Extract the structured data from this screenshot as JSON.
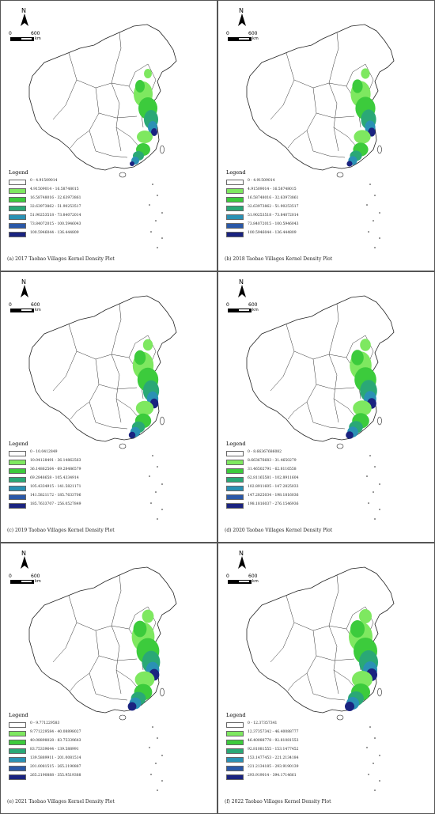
{
  "north_label": "N",
  "scale": {
    "start": "0",
    "end": "600",
    "unit": "km"
  },
  "legend_title": "Legend",
  "legend_colors": [
    "#ffffff",
    "#7ee860",
    "#3ccb3c",
    "#2aa876",
    "#2a91b4",
    "#2a58a8",
    "#1a2380"
  ],
  "panels": [
    {
      "caption": "(a) 2017 Taobao Villages Kernel Density Plot",
      "legend": [
        "0 - 4.91509014",
        "4.91509014 - 16.58748015",
        "16.58748016 - 32.63973861",
        "32.63973862 - 51.90253517",
        "51.90253518 - 73.84072014",
        "73.84072015 - 100.5946043",
        "100.5946044 - 136.444809"
      ]
    },
    {
      "caption": "(b) 2018 Taobao Villages Kernel Density Plot",
      "legend": [
        "0 - 4.91509014",
        "4.91509014 - 16.58748015",
        "16.58748016 - 32.63973861",
        "32.63973862 - 51.90253517",
        "51.90253518 - 73.84072014",
        "73.84072015 - 100.5946043",
        "100.5946044 - 136.444809"
      ]
    },
    {
      "caption": "(c) 2019 Taobao Villages Kernel Density Plot",
      "legend": [
        "0 - 10.0412849",
        "10.04128491 - 36.14862563",
        "36.14862564 - 69.28486579",
        "69.2848658 - 105.4334914",
        "105.4334915 - 141.5821171",
        "141.5821172 - 185.7633706",
        "185.7633707 - 256.0527849"
      ]
    },
    {
      "caption": "(d) 2020 Taobao Villages Kernel Density Plot",
      "legend": [
        "0 - 8.66367686082",
        "8.663676683 - 31.4650279",
        "31.46502791 - 62.8116558",
        "62.81165581 - 102.8911604",
        "102.8911605 - 147.2825033",
        "147.2825034 - 198.1816036",
        "198.1816037 - 276.1546936"
      ]
    },
    {
      "caption": "(e) 2021 Taobao Villages Kernel Density Plot",
      "legend": [
        "0 - 9.771229583",
        "9.771229584 - 40.08898027",
        "40.08898028 - 83.75339643",
        "83.75339644 - 139.588991",
        "139.5889911 - 201.0081514",
        "201.0081515 - 265.2190887",
        "265.2190888 - 355.9519388"
      ]
    },
    {
      "caption": "(f) 2022 Taobao Villages Kernel Density Plot",
      "legend": [
        "0 - 12.37357341",
        "12.37357342 - 46.40088777",
        "46.40088778 - 92.81081553",
        "92.81081555 - 153.1477452",
        "153.1477453 - 221.2134184",
        "221.2134185 - 293.9190139",
        "293.919014 - 394.1714661"
      ]
    }
  ]
}
